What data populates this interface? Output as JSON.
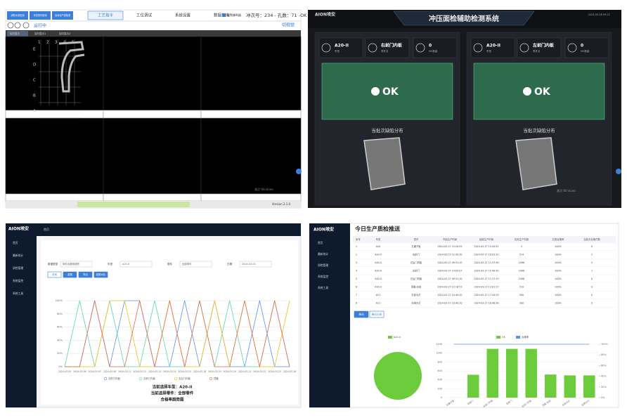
{
  "top_left": {
    "tabs": [
      "消防水泵检测",
      "冲压零件检测",
      "自动化产线检测",
      "工艺指令",
      "工位调试",
      "系统设置",
      "数据查询"
    ],
    "alarm": "报警蜂鸣器",
    "status": "冲次号：234 - 孔数：71 -OK",
    "run_button": "运行中",
    "view_button": "切视觉",
    "view_tabs": [
      "实时显示",
      "实时显示1",
      "实时显示2"
    ],
    "grid_rows": [
      "E",
      "D",
      "C",
      "B",
      "A"
    ],
    "grid_cols": [
      "1",
      "2",
      "3",
      "4",
      "5"
    ],
    "watermark": "激活 Windows",
    "version": "Version 2.1.0"
  },
  "top_right": {
    "title": "冲压面检辅助检测系统",
    "datetime": "2024-05-08 09:21",
    "watermark": "激活 Windows",
    "panels": [
      {
        "model": "A20-II",
        "model_label": "车型",
        "part": "右前门内板",
        "part_label": "零件名",
        "ng": "0",
        "ng_label": "NG数量",
        "result": "OK",
        "defect_title": "当批次缺陷分布"
      },
      {
        "model": "A20-II",
        "model_label": "车型",
        "part": "左前门内板",
        "part_label": "零件名",
        "ng": "0",
        "ng_label": "NG数量",
        "result": "OK",
        "defect_title": "当批次缺陷分布"
      }
    ]
  },
  "bottom_left": {
    "logo": "AION埃安",
    "nav_tab": "首页",
    "menu": [
      "首页",
      "最新统计",
      "质检管理",
      "系统监控",
      "系统工具"
    ],
    "filters": [
      {
        "label": "数据类型",
        "value": "零件合格率趋势"
      },
      {
        "label": "车型",
        "value": "A20-II"
      },
      {
        "label": "零件",
        "value": "全部零件"
      },
      {
        "label": "日期",
        "value": "2024-03-01"
      }
    ],
    "buttons": [
      "查询",
      "重置",
      "导出",
      "趋势对比"
    ],
    "captions": [
      "当前选择车型：A20-II",
      "当前选择零件：全部零件",
      "合格率趋势图"
    ],
    "chart_data": {
      "type": "line",
      "x": [
        "2024-03-05",
        "2024-03-06",
        "2024-03-07",
        "2024-03-08",
        "2024-03-11",
        "2024-03-12",
        "2024-03-13",
        "2024-03-14",
        "2024-03-15",
        "2024-03-18",
        "2024-03-19",
        "2024-03-20",
        "2024-03-21",
        "2024-03-22",
        "2024-03-25",
        "2024-03-26"
      ],
      "ylim": [
        0,
        100
      ],
      "yticks": [
        {
          "value": 0,
          "label": "0%"
        },
        {
          "value": 20,
          "label": "20%"
        },
        {
          "value": 40,
          "label": "40%"
        },
        {
          "value": 60,
          "label": "60%"
        },
        {
          "value": 80,
          "label": "80%"
        },
        {
          "value": 100,
          "label": "100%"
        }
      ],
      "grid": true,
      "series": [
        {
          "name": "右前门内板",
          "color": "#5b8ff9",
          "values": [
            0,
            0,
            100,
            0,
            100,
            100,
            0,
            0,
            100,
            0,
            100,
            0,
            0,
            100,
            0,
            0
          ]
        },
        {
          "name": "左前门内板",
          "color": "#5ad8a6",
          "values": [
            0,
            100,
            0,
            100,
            0,
            0,
            100,
            0,
            0,
            100,
            0,
            100,
            0,
            0,
            100,
            0
          ]
        },
        {
          "name": "右后门内板",
          "color": "#f6bd16",
          "values": [
            0,
            0,
            0,
            100,
            100,
            0,
            0,
            100,
            0,
            0,
            100,
            0,
            100,
            0,
            0,
            100
          ]
        },
        {
          "name": "顶盖",
          "color": "#e8684a",
          "values": [
            0,
            0,
            100,
            0,
            0,
            100,
            0,
            100,
            0,
            100,
            0,
            0,
            100,
            0,
            100,
            0
          ]
        }
      ]
    }
  },
  "bottom_right": {
    "logo": "AION埃安",
    "menu": [
      "首页",
      "最新统计",
      "质检管理",
      "系统监控",
      "系统工具"
    ],
    "title": "今日生产质检推送",
    "table": {
      "headers": [
        "序号",
        "车型",
        "零件",
        "开始生产时间",
        "结束生产时间",
        "实际生产件数",
        "孔数合格率",
        "当批次合格件数"
      ],
      "rows": [
        [
          "1",
          "A20",
          "右翼子板",
          "2024-03-27 15:20:55",
          "2024-03-27 15:20:55",
          "1",
          "100%",
          "0"
        ],
        [
          "2",
          "A20-II",
          "右前门",
          "2024-03-27 12:30:30",
          "2024-03-27 16:05:31",
          "514",
          "100%",
          "2"
        ],
        [
          "3",
          "A20-II",
          "右后门内板",
          "2024-03-27 09:52:10",
          "2024-03-27 11:57:36",
          "1096",
          "100%",
          "5"
        ],
        [
          "4",
          "A20-II",
          "左前门",
          "2024-03-27 14:05:07",
          "2024-03-27 15:40:39",
          "1096",
          "100%",
          "1"
        ],
        [
          "5",
          "A20-II",
          "左后门内板",
          "2024-03-27 09:51:10",
          "2024-03-27 11:57:19",
          "1096",
          "100%",
          "0"
        ],
        [
          "6",
          "A20-II",
          "顶盖-右前",
          "2024-03-27 12:16:51",
          "2024-03-27 13:01:27",
          "519",
          "100%",
          "0"
        ],
        [
          "7",
          "A21",
          "右前大灯",
          "2024-03-27 10:40:20",
          "2024-03-27 17:44:29",
          "500",
          "100%",
          "0"
        ],
        [
          "8",
          "A21",
          "左侧大灯",
          "2024-03-27 10:40:20",
          "2024-03-27 18:48:36",
          "500",
          "100%",
          "0"
        ]
      ]
    },
    "tabs": [
      "推送",
      "最近记录"
    ],
    "pie": {
      "type": "pie",
      "labels": [
        "A20-II"
      ],
      "values": [
        100
      ],
      "colors": [
        "#6ccc3c"
      ]
    },
    "chart_data": {
      "type": "bar",
      "categories": [
        "右翼子板",
        "右前门",
        "右后门内板",
        "左前门",
        "左后门内板",
        "顶盖-右前",
        "右前大灯",
        "左侧大灯"
      ],
      "ylim": [
        0,
        1200
      ],
      "yticks": [
        0,
        200,
        400,
        600,
        800,
        1000,
        1200
      ],
      "y2lim": [
        0,
        100
      ],
      "y2ticks": [
        {
          "value": 0,
          "label": "0%"
        },
        {
          "value": 20,
          "label": "20%"
        },
        {
          "value": 40,
          "label": "40%"
        },
        {
          "value": 60,
          "label": "60%"
        },
        {
          "value": 80,
          "label": "80%"
        },
        {
          "value": 100,
          "label": "100%"
        }
      ],
      "series": [
        {
          "name": "OK",
          "color": "#6ccc3c",
          "values": [
            1,
            514,
            1096,
            1096,
            1096,
            519,
            500,
            500
          ]
        },
        {
          "name": "合格率",
          "color": "#5b8ff9",
          "axis": "y2",
          "values": [
            100,
            100,
            100,
            100,
            100,
            100,
            100,
            100
          ]
        }
      ]
    }
  }
}
